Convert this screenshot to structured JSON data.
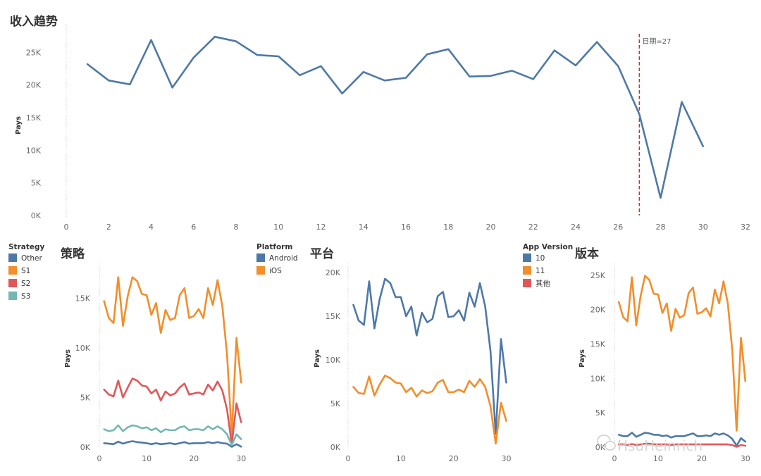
{
  "watermark": "HsuHeinrich",
  "chart_data": [
    {
      "id": "trend",
      "type": "line",
      "title": "收入趋势",
      "ylabel": "Pays",
      "xlim": [
        0,
        32
      ],
      "ylim": [
        0,
        28500
      ],
      "xticks": [
        0,
        2,
        4,
        6,
        8,
        10,
        12,
        14,
        16,
        18,
        20,
        22,
        24,
        26,
        28,
        30,
        32
      ],
      "yticks": [
        0,
        5000,
        10000,
        15000,
        20000,
        25000
      ],
      "ytick_labels": [
        "0K",
        "5K",
        "10K",
        "15K",
        "20K",
        "25K"
      ],
      "reference_line": {
        "x": 27,
        "label": "日期=27",
        "color": "#c0392b"
      },
      "x": [
        1,
        2,
        3,
        4,
        5,
        6,
        7,
        8,
        9,
        10,
        11,
        12,
        13,
        14,
        15,
        16,
        17,
        18,
        19,
        20,
        21,
        22,
        23,
        24,
        25,
        26,
        27,
        28,
        29,
        30
      ],
      "series": [
        {
          "color": "#4e79a7",
          "values": [
            23200,
            20700,
            20100,
            26900,
            19600,
            24200,
            27400,
            26700,
            24600,
            24400,
            21500,
            22900,
            18700,
            22000,
            20700,
            21100,
            24700,
            25500,
            21300,
            21400,
            22200,
            20900,
            25300,
            23000,
            26600,
            22900,
            15500,
            2700,
            17400,
            10600
          ]
        }
      ]
    },
    {
      "id": "strategy",
      "type": "line",
      "title": "策略",
      "ylabel": "Pays",
      "xlim": [
        0,
        31
      ],
      "ylim": [
        0,
        18000
      ],
      "xticks": [
        0,
        10,
        20,
        30
      ],
      "yticks": [
        0,
        5000,
        10000,
        15000
      ],
      "ytick_labels": [
        "0K",
        "5K",
        "10K",
        "15K"
      ],
      "legend": {
        "title": "Strategy",
        "placement": "left"
      },
      "x": [
        1,
        2,
        3,
        4,
        5,
        6,
        7,
        8,
        9,
        10,
        11,
        12,
        13,
        14,
        15,
        16,
        17,
        18,
        19,
        20,
        21,
        22,
        23,
        24,
        25,
        26,
        27,
        28,
        29,
        30
      ],
      "series": [
        {
          "name": "Other",
          "color": "#4e79a7",
          "values": [
            400,
            350,
            300,
            550,
            350,
            500,
            600,
            500,
            450,
            400,
            300,
            400,
            300,
            350,
            400,
            300,
            400,
            500,
            350,
            400,
            400,
            400,
            500,
            400,
            500,
            400,
            350,
            30,
            300,
            50
          ]
        },
        {
          "name": "S1",
          "color": "#f28e2b",
          "values": [
            14700,
            13000,
            12500,
            17100,
            12200,
            15200,
            17100,
            16700,
            15400,
            15300,
            13300,
            14500,
            11500,
            13800,
            12800,
            13000,
            15300,
            16000,
            13000,
            13200,
            13900,
            13000,
            16000,
            14300,
            16800,
            14200,
            9300,
            1200,
            11000,
            6500
          ]
        },
        {
          "name": "S2",
          "color": "#e15759",
          "values": [
            5800,
            5300,
            5100,
            6700,
            5000,
            6000,
            6900,
            6700,
            6200,
            6100,
            5400,
            5800,
            4700,
            5600,
            5200,
            5400,
            6000,
            6400,
            5300,
            5400,
            5500,
            5300,
            6300,
            5700,
            6600,
            5700,
            3800,
            300,
            4400,
            2500
          ]
        },
        {
          "name": "S3",
          "color": "#76b7b2",
          "values": [
            1800,
            1600,
            1700,
            2200,
            1600,
            2000,
            2200,
            2100,
            1900,
            2000,
            1700,
            1900,
            1500,
            1800,
            1700,
            1700,
            2000,
            2100,
            1700,
            1800,
            1800,
            1700,
            2100,
            1800,
            2100,
            1800,
            1300,
            200,
            1300,
            800
          ]
        }
      ]
    },
    {
      "id": "platform",
      "type": "line",
      "title": "平台",
      "ylabel": "Pays",
      "xlim": [
        0,
        31
      ],
      "ylim": [
        0,
        20500
      ],
      "xticks": [
        0,
        10,
        20,
        30
      ],
      "yticks": [
        0,
        5000,
        10000,
        15000,
        20000
      ],
      "ytick_labels": [
        "0K",
        "5K",
        "10K",
        "15K",
        "20K"
      ],
      "legend": {
        "title": "Platform",
        "placement": "left"
      },
      "x": [
        1,
        2,
        3,
        4,
        5,
        6,
        7,
        8,
        9,
        10,
        11,
        12,
        13,
        14,
        15,
        16,
        17,
        18,
        19,
        20,
        21,
        22,
        23,
        24,
        25,
        26,
        27,
        28,
        29,
        30
      ],
      "series": [
        {
          "name": "Android",
          "color": "#4e79a7",
          "values": [
            16300,
            14500,
            14000,
            19000,
            13600,
            17000,
            19300,
            18800,
            17200,
            17200,
            15000,
            16100,
            12800,
            15400,
            14300,
            14700,
            17300,
            17800,
            14900,
            15000,
            15700,
            14500,
            17700,
            16100,
            18800,
            16100,
            11000,
            1500,
            12400,
            7400
          ]
        },
        {
          "name": "iOS",
          "color": "#f28e2b",
          "values": [
            6900,
            6200,
            6100,
            8100,
            5900,
            7200,
            8200,
            7900,
            7400,
            7300,
            6300,
            6800,
            5800,
            6500,
            6200,
            6400,
            7400,
            7700,
            6300,
            6300,
            6600,
            6300,
            7600,
            6900,
            7800,
            6900,
            4700,
            400,
            5100,
            3000
          ]
        }
      ]
    },
    {
      "id": "version",
      "type": "line",
      "title": "版本",
      "ylabel": "Pays",
      "xlim": [
        0,
        31
      ],
      "ylim": [
        0,
        26000
      ],
      "xticks": [
        0,
        10,
        20,
        30
      ],
      "yticks": [
        0,
        5000,
        10000,
        15000,
        20000,
        25000
      ],
      "ytick_labels": [
        "0K",
        "5K",
        "10K",
        "15K",
        "20K",
        "25K"
      ],
      "legend": {
        "title": "App Version",
        "placement": "left"
      },
      "x": [
        1,
        2,
        3,
        4,
        5,
        6,
        7,
        8,
        9,
        10,
        11,
        12,
        13,
        14,
        15,
        16,
        17,
        18,
        19,
        20,
        21,
        22,
        23,
        24,
        25,
        26,
        27,
        28,
        29,
        30
      ],
      "series": [
        {
          "name": "10",
          "color": "#4e79a7",
          "values": [
            1800,
            1600,
            1600,
            2100,
            1500,
            1800,
            2100,
            2000,
            1800,
            1800,
            1600,
            1700,
            1400,
            1600,
            1600,
            1600,
            1800,
            2000,
            1600,
            1600,
            1700,
            1600,
            2000,
            1800,
            2000,
            1700,
            1200,
            200,
            1300,
            800
          ]
        },
        {
          "name": "11",
          "color": "#f28e2b",
          "values": [
            21100,
            18900,
            18300,
            24700,
            17700,
            22000,
            24900,
            24300,
            22300,
            22200,
            19500,
            20900,
            16900,
            20100,
            18800,
            19200,
            22400,
            23200,
            19400,
            19600,
            20200,
            19000,
            22900,
            20900,
            24100,
            20800,
            14100,
            2400,
            15900,
            9600
          ]
        },
        {
          "name": "其他",
          "color": "#e15759",
          "values": [
            400,
            400,
            300,
            500,
            300,
            400,
            500,
            500,
            400,
            400,
            400,
            400,
            300,
            400,
            400,
            400,
            400,
            400,
            400,
            400,
            400,
            400,
            400,
            400,
            400,
            400,
            300,
            50,
            300,
            200
          ]
        }
      ]
    }
  ]
}
